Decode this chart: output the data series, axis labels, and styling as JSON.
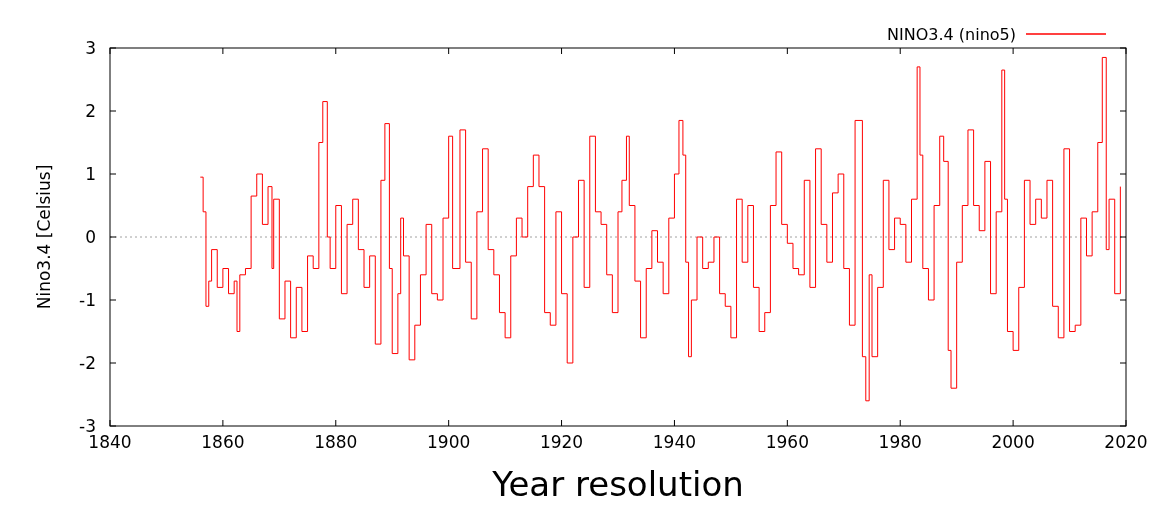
{
  "chart_data": {
    "type": "step",
    "ylabel": "Nino3.4 [Celsius]",
    "annotations": [
      "Year resolution"
    ],
    "xlim": [
      1840,
      2020
    ],
    "xticks": [
      1840,
      1860,
      1880,
      1900,
      1920,
      1940,
      1960,
      1980,
      2000,
      2020
    ],
    "ylim": [
      -3,
      3
    ],
    "yticks": [
      -3,
      -2,
      -1,
      0,
      1,
      2,
      3
    ],
    "grid": false,
    "legend": "top right",
    "ref_lines": [
      {
        "axis": "y",
        "value": 0,
        "color": "#a0a0a0",
        "line_style": "dotted"
      }
    ],
    "series": [
      {
        "name": "NINO3.4 (nino5)",
        "color": "#ff0000",
        "x": [
          1856,
          1856.5,
          1857,
          1857.5,
          1858,
          1859,
          1860,
          1861,
          1862,
          1862.5,
          1863,
          1864,
          1865,
          1866,
          1867,
          1868,
          1868.7,
          1869,
          1870,
          1871,
          1872,
          1873,
          1874,
          1875,
          1876,
          1877,
          1877.7,
          1878.5,
          1879,
          1880,
          1881,
          1882,
          1883,
          1884,
          1885,
          1886,
          1887,
          1888,
          1888.7,
          1889.5,
          1890,
          1891,
          1891.5,
          1892,
          1893,
          1894,
          1895,
          1896,
          1897,
          1898,
          1899,
          1900,
          1900.7,
          1902,
          1903,
          1904,
          1905,
          1906,
          1907,
          1908,
          1909,
          1910,
          1911,
          1912,
          1913,
          1914,
          1915,
          1916,
          1917,
          1918,
          1919,
          1920,
          1921,
          1922,
          1923,
          1924,
          1925,
          1926,
          1927,
          1928,
          1929,
          1930,
          1930.7,
          1931.5,
          1932,
          1933,
          1934,
          1935,
          1936,
          1937,
          1938,
          1939,
          1940,
          1940.8,
          1941.5,
          1942,
          1942.5,
          1943,
          1944,
          1945,
          1946,
          1947,
          1948,
          1949,
          1950,
          1951,
          1952,
          1953,
          1954,
          1955,
          1956,
          1957,
          1958,
          1959,
          1960,
          1961,
          1962,
          1963,
          1964,
          1965,
          1966,
          1967,
          1968,
          1969,
          1970,
          1971,
          1972,
          1973.3,
          1973.9,
          1974.5,
          1975,
          1976,
          1977,
          1978,
          1979,
          1980,
          1981,
          1982,
          1983,
          1983.5,
          1984,
          1985,
          1986,
          1987,
          1987.7,
          1988.5,
          1989,
          1990,
          1991,
          1992,
          1993,
          1994,
          1995,
          1996,
          1997,
          1998,
          1998.5,
          1999,
          2000,
          2001,
          2002,
          2003,
          2004,
          2005,
          2006,
          2007,
          2008,
          2009,
          2010,
          2011,
          2012,
          2013,
          2014,
          2015,
          2015.8,
          2016.5,
          2017,
          2018,
          2019
        ],
        "values": [
          0.95,
          0.4,
          -1.1,
          -0.7,
          -0.2,
          -0.8,
          -0.5,
          -0.9,
          -0.7,
          -1.5,
          -0.6,
          -0.5,
          0.65,
          1.0,
          0.2,
          0.8,
          -0.5,
          0.6,
          -1.3,
          -0.7,
          -1.6,
          -0.8,
          -1.5,
          -0.3,
          -0.5,
          1.5,
          2.15,
          0.0,
          -0.5,
          0.5,
          -0.9,
          0.2,
          0.6,
          -0.2,
          -0.8,
          -0.3,
          -1.7,
          0.9,
          1.8,
          -0.5,
          -1.85,
          -0.9,
          0.3,
          -0.3,
          -1.95,
          -1.4,
          -0.6,
          0.2,
          -0.9,
          -1.0,
          0.3,
          1.6,
          -0.5,
          1.7,
          -0.4,
          -1.3,
          0.4,
          1.4,
          -0.2,
          -0.6,
          -1.2,
          -1.6,
          -0.3,
          0.3,
          0.0,
          0.8,
          1.3,
          0.8,
          -1.2,
          -1.4,
          0.4,
          -0.9,
          -2.0,
          0.0,
          0.9,
          -0.8,
          1.6,
          0.4,
          0.2,
          -0.6,
          -1.2,
          0.4,
          0.9,
          1.6,
          0.5,
          -0.7,
          -1.6,
          -0.5,
          0.1,
          -0.4,
          -0.9,
          0.3,
          1.0,
          1.85,
          1.3,
          -0.4,
          -1.9,
          -1.0,
          0.0,
          -0.5,
          -0.4,
          0.0,
          -0.9,
          -1.1,
          -1.6,
          0.6,
          -0.4,
          0.5,
          -0.8,
          -1.5,
          -1.2,
          0.5,
          1.35,
          0.2,
          -0.1,
          -0.5,
          -0.6,
          0.9,
          -0.8,
          1.4,
          0.2,
          -0.4,
          0.7,
          1.0,
          -0.5,
          -1.4,
          1.85,
          -1.9,
          -2.6,
          -0.6,
          -1.9,
          -0.8,
          0.9,
          -0.2,
          0.3,
          0.2,
          -0.4,
          0.6,
          2.7,
          1.3,
          -0.5,
          -1.0,
          0.5,
          1.6,
          1.2,
          -1.8,
          -2.4,
          -0.4,
          0.5,
          1.7,
          0.5,
          0.1,
          1.2,
          -0.9,
          0.4,
          2.65,
          0.6,
          -1.5,
          -1.8,
          -0.8,
          0.9,
          0.2,
          0.6,
          0.3,
          0.9,
          -1.1,
          -1.6,
          1.4,
          -1.5,
          -1.4,
          0.3,
          -0.3,
          0.4,
          1.5,
          2.85,
          -0.2,
          0.6,
          -0.9,
          0.8
        ]
      }
    ]
  }
}
